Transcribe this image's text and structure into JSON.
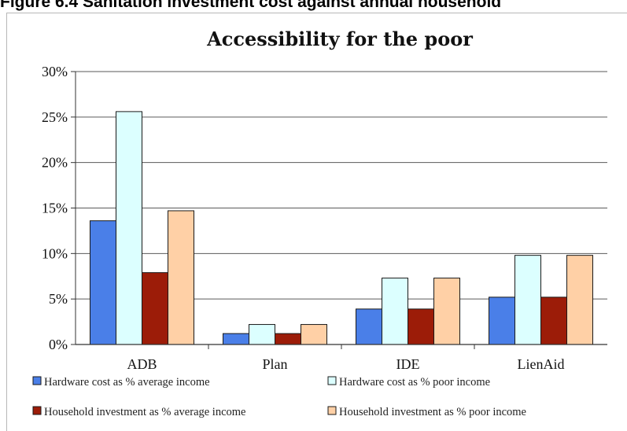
{
  "figure_caption": "Figure 6.4    Sanitation investment cost against annual household",
  "chart_data": {
    "type": "bar",
    "title": "Accessibility for the poor",
    "xlabel": "",
    "ylabel": "",
    "categories": [
      "ADB",
      "Plan",
      "IDE",
      "LienAid"
    ],
    "ylim": [
      0,
      30
    ],
    "yticks": [
      "0%",
      "5%",
      "10%",
      "15%",
      "20%",
      "25%",
      "30%"
    ],
    "grid": true,
    "legend_position": "bottom",
    "series": [
      {
        "name": "Hardware cost as % average income",
        "color": "#4a7fe8",
        "values": [
          13.6,
          1.2,
          3.9,
          5.2
        ]
      },
      {
        "name": "Hardware cost as % poor income",
        "color": "#dcffff",
        "values": [
          25.6,
          2.2,
          7.3,
          9.8
        ]
      },
      {
        "name": "Household investment as % average income",
        "color": "#9c1c08",
        "values": [
          7.9,
          1.2,
          3.9,
          5.2
        ]
      },
      {
        "name": "Household investment as % poor income",
        "color": "#ffd0a6",
        "values": [
          14.7,
          2.2,
          7.3,
          9.8
        ]
      }
    ]
  }
}
